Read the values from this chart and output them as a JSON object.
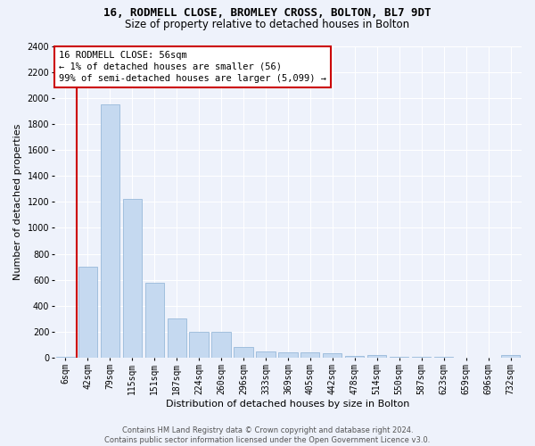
{
  "title_line1": "16, RODMELL CLOSE, BROMLEY CROSS, BOLTON, BL7 9DT",
  "title_line2": "Size of property relative to detached houses in Bolton",
  "xlabel": "Distribution of detached houses by size in Bolton",
  "ylabel": "Number of detached properties",
  "bar_color": "#c5d9f0",
  "bar_edge_color": "#8ab0d4",
  "bar_categories": [
    "6sqm",
    "42sqm",
    "79sqm",
    "115sqm",
    "151sqm",
    "187sqm",
    "224sqm",
    "260sqm",
    "296sqm",
    "333sqm",
    "369sqm",
    "405sqm",
    "442sqm",
    "478sqm",
    "514sqm",
    "550sqm",
    "587sqm",
    "623sqm",
    "659sqm",
    "696sqm",
    "732sqm"
  ],
  "bar_values": [
    10,
    700,
    1950,
    1225,
    575,
    305,
    200,
    200,
    80,
    48,
    40,
    40,
    35,
    15,
    20,
    5,
    5,
    5,
    2,
    2,
    20
  ],
  "ylim_max": 2400,
  "yticks": [
    0,
    200,
    400,
    600,
    800,
    1000,
    1200,
    1400,
    1600,
    1800,
    2000,
    2200,
    2400
  ],
  "vline_x_idx": 1,
  "vline_color": "#cc0000",
  "annotation_text": "16 RODMELL CLOSE: 56sqm\n← 1% of detached houses are smaller (56)\n99% of semi-detached houses are larger (5,099) →",
  "annotation_box_facecolor": "#ffffff",
  "annotation_box_edgecolor": "#cc0000",
  "footer_line1": "Contains HM Land Registry data © Crown copyright and database right 2024.",
  "footer_line2": "Contains public sector information licensed under the Open Government Licence v3.0.",
  "bg_color": "#eef2fb",
  "grid_color": "#ffffff",
  "title_fontsize": 9,
  "subtitle_fontsize": 8.5,
  "ylabel_fontsize": 8,
  "xlabel_fontsize": 8,
  "tick_fontsize": 7,
  "annotation_fontsize": 7.5,
  "footer_fontsize": 6
}
